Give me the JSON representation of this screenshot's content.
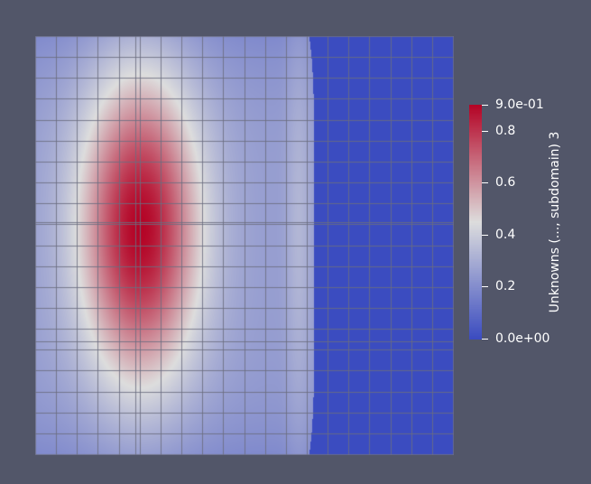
{
  "view": {
    "background": "#525669",
    "mesh_line_color": "#6b6d80",
    "grid_cells": 20
  },
  "colorbar": {
    "title": "Unknowns (..., subdomain) 3",
    "colormap": "cool-to-warm",
    "min": 0.0,
    "max": 0.9,
    "colors": [
      "#3b4cc0",
      "#dddddd",
      "#b40426"
    ],
    "ticks": [
      {
        "value": 0.9,
        "label": "9.0e-01"
      },
      {
        "value": 0.8,
        "label": "0.8"
      },
      {
        "value": 0.6,
        "label": "0.6"
      },
      {
        "value": 0.4,
        "label": "0.4"
      },
      {
        "value": 0.2,
        "label": "0.2"
      },
      {
        "value": 0.0,
        "label": "0.0e+00"
      }
    ]
  }
}
